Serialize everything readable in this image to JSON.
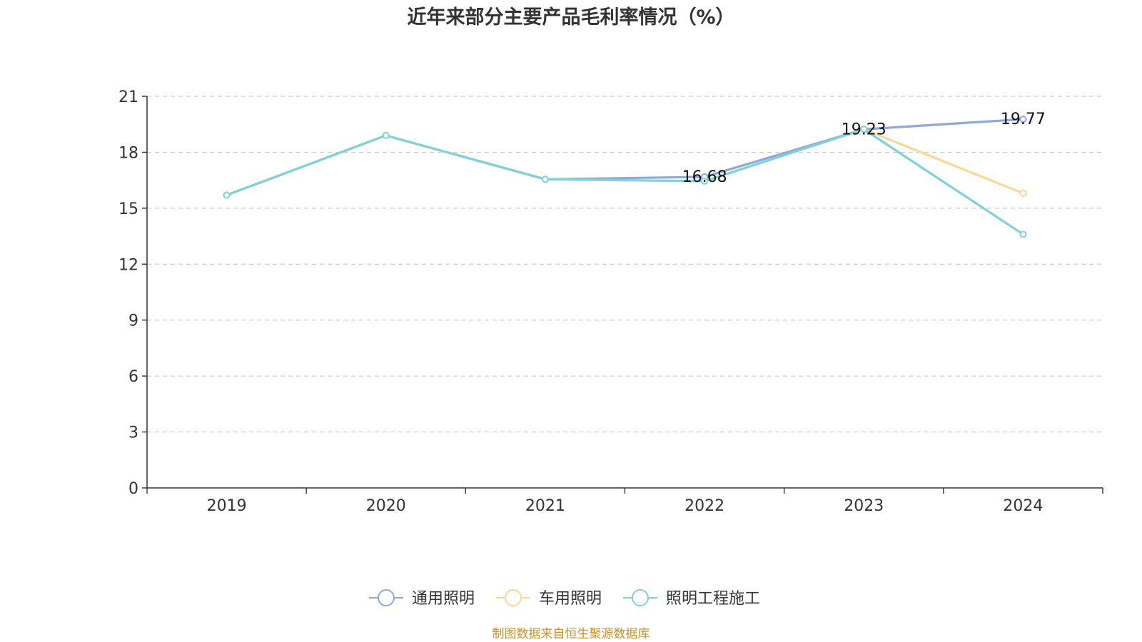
{
  "chart_data": {
    "type": "line",
    "title": "近年来部分主要产品毛利率情况（%）",
    "categories": [
      "2019",
      "2020",
      "2021",
      "2022",
      "2023",
      "2024"
    ],
    "ylim": [
      0,
      21
    ],
    "yticks": [
      0,
      3,
      6,
      9,
      12,
      15,
      18,
      21
    ],
    "grid": true,
    "legend_position": "bottom-center",
    "series": [
      {
        "name": "通用照明",
        "color": "#8fa8d8",
        "values": [
          15.7,
          18.9,
          16.55,
          16.68,
          19.23,
          19.77
        ],
        "labels": {
          "3": "16.68",
          "4": "19.23",
          "5": "19.77"
        }
      },
      {
        "name": "车用照明",
        "color": "#fcd898",
        "values": [
          15.7,
          18.9,
          16.55,
          16.45,
          19.23,
          15.8
        ],
        "labels": {}
      },
      {
        "name": "照明工程施工",
        "color": "#80d2d6",
        "values": [
          15.7,
          18.9,
          16.55,
          16.45,
          19.23,
          13.6
        ],
        "labels": {}
      }
    ],
    "source": "制图数据来自恒生聚源数据库",
    "source_color": "#c8922a"
  }
}
